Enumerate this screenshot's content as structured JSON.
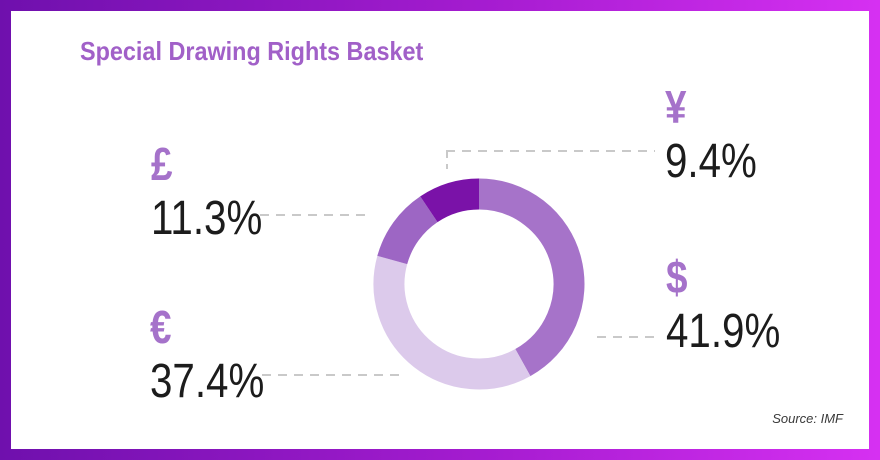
{
  "frame": {
    "border_gradient_left": "#6f10ad",
    "border_gradient_right": "#d630f2",
    "card_background": "#ffffff"
  },
  "header": {
    "title": "Special Drawing Rights Basket",
    "title_color": "#a160c8"
  },
  "footer": {
    "source": "Source: IMF"
  },
  "styles": {
    "connector_color": "#c9c9c9",
    "number_color": "#1c1c1c",
    "symbol_color": "#a572ca"
  },
  "chart_data": {
    "type": "pie",
    "variant": "donut",
    "title": "Special Drawing Rights Basket",
    "source": "Source: IMF",
    "start_angle": "12 o'clock",
    "direction": "clockwise",
    "legend_position": "callout-labels",
    "inner_radius_px": 74,
    "outer_radius_px": 106,
    "segments": [
      {
        "currency": "USD",
        "symbol": "$",
        "value": 41.9,
        "label": "41.9%",
        "color": "#a673c9"
      },
      {
        "currency": "EUR",
        "symbol": "€",
        "value": 37.4,
        "label": "37.4%",
        "color": "#dccaeb"
      },
      {
        "currency": "GBP",
        "symbol": "£",
        "value": 11.3,
        "label": "11.3%",
        "color": "#9d66c4"
      },
      {
        "currency": "JPY",
        "symbol": "¥",
        "value": 9.4,
        "label": "9.4%",
        "color": "#7a12a8"
      }
    ]
  }
}
